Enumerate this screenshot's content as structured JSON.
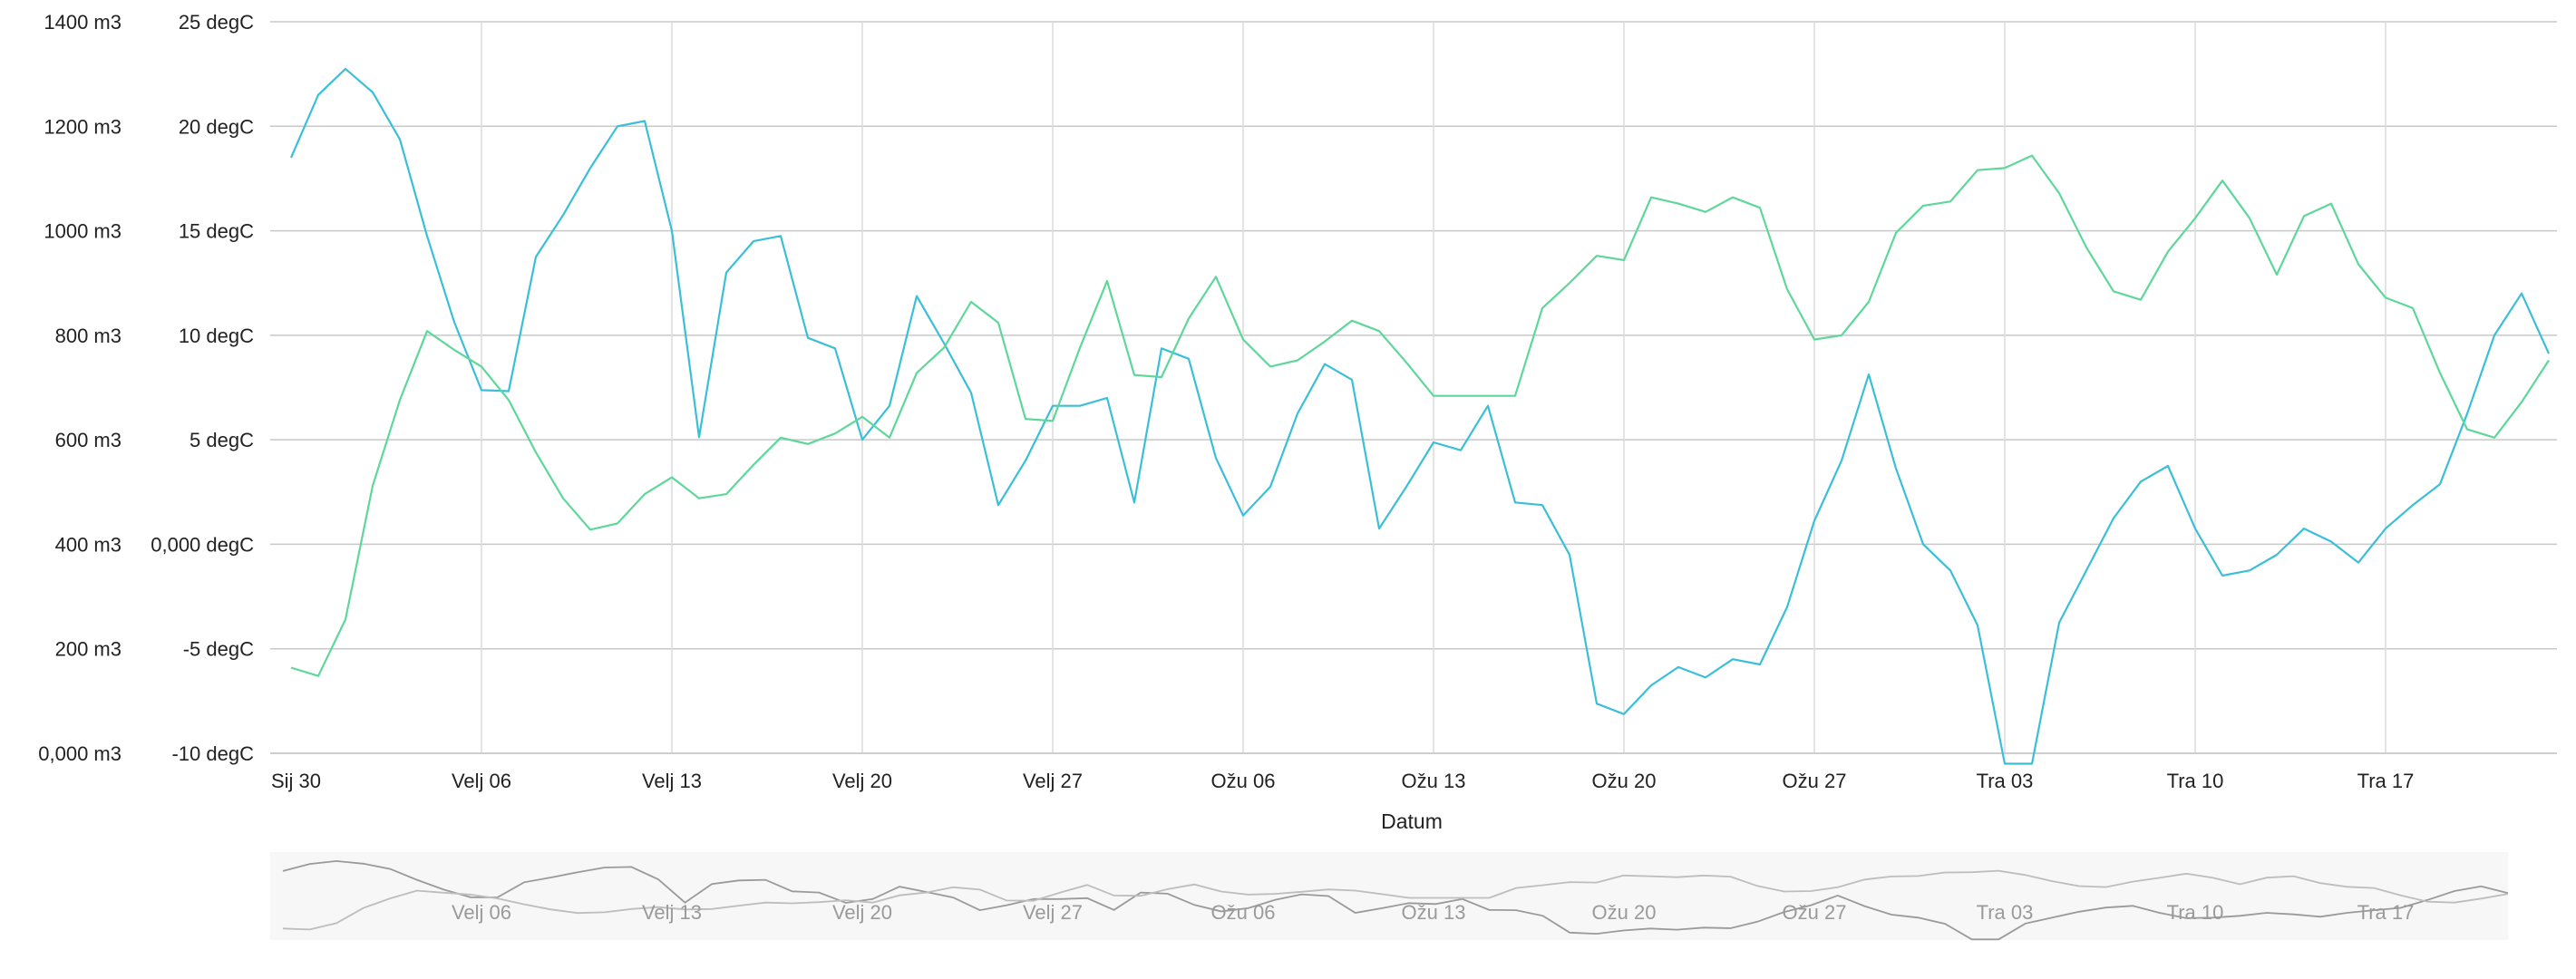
{
  "chart_data": {
    "type": "line",
    "xlabel": "Datum",
    "x_start": "2017-01-30",
    "x_step_days": 1,
    "x_tick_labels": [
      "Sij 30",
      "Velj 06",
      "Velj 13",
      "Velj 20",
      "Velj 27",
      "Ožu 06",
      "Ožu 13",
      "Ožu 20",
      "Ožu 27",
      "Tra 03",
      "Tra 10",
      "Tra 17"
    ],
    "navigator_tick_labels": [
      "Velj 06",
      "Velj 13",
      "Velj 20",
      "Velj 27",
      "Ožu 06",
      "Ožu 13",
      "Ožu 20",
      "Ožu 27",
      "Tra 03",
      "Tra 10",
      "Tra 17"
    ],
    "y_left": {
      "tick_labels": [
        "0,000 m3",
        "200 m3",
        "400 m3",
        "600 m3",
        "800 m3",
        "1000 m3",
        "1200 m3",
        "1400 m3"
      ],
      "ylim": [
        0,
        1400
      ]
    },
    "y_right": {
      "tick_labels": [
        "-10 degC",
        "-5 degC",
        "0,000 degC",
        "5 degC",
        "10 degC",
        "15 degC",
        "20 degC",
        "25 degC"
      ],
      "ylim": [
        -10,
        25
      ]
    },
    "grid": true,
    "series": [
      {
        "axis": "left",
        "color": "#3bbfd9",
        "values": [
          1140,
          1260,
          1310,
          1265,
          1175,
          990,
          825,
          695,
          693,
          950,
          1030,
          1120,
          1200,
          1210,
          1000,
          605,
          920,
          980,
          990,
          795,
          775,
          600,
          665,
          875,
          785,
          690,
          475,
          560,
          665,
          665,
          680,
          480,
          775,
          755,
          565,
          455,
          510,
          650,
          745,
          715,
          430,
          510,
          595,
          580,
          665,
          480,
          475,
          380,
          95,
          75,
          130,
          165,
          145,
          180,
          170,
          280,
          445,
          560,
          725,
          545,
          400,
          350,
          245,
          -20,
          -20,
          250,
          350,
          450,
          520,
          550,
          430,
          340,
          350,
          380,
          430,
          405,
          365,
          430,
          475,
          515,
          650,
          800,
          880,
          765
        ]
      },
      {
        "axis": "right",
        "color": "#5fd79a",
        "values": [
          -5.9,
          -6.3,
          -3.6,
          2.8,
          6.9,
          10.2,
          9.3,
          8.5,
          6.9,
          4.4,
          2.2,
          0.7,
          1.0,
          2.4,
          3.2,
          2.2,
          2.4,
          3.8,
          5.1,
          4.8,
          5.3,
          6.1,
          5.1,
          8.2,
          9.4,
          11.6,
          10.6,
          6.0,
          5.9,
          9.4,
          12.6,
          8.1,
          8.0,
          10.8,
          12.8,
          9.8,
          8.5,
          8.8,
          9.7,
          10.7,
          10.2,
          8.7,
          7.1,
          7.1,
          7.1,
          7.1,
          11.3,
          12.5,
          13.8,
          13.6,
          16.6,
          16.3,
          15.9,
          16.6,
          16.1,
          12.2,
          9.8,
          10.0,
          11.6,
          14.9,
          16.2,
          16.4,
          17.9,
          18.0,
          18.6,
          16.8,
          14.2,
          12.1,
          11.7,
          14.0,
          15.6,
          17.4,
          15.6,
          12.9,
          15.7,
          16.3,
          13.4,
          11.8,
          11.3,
          8.2,
          5.5,
          5.1,
          6.8,
          8.8
        ]
      }
    ]
  }
}
